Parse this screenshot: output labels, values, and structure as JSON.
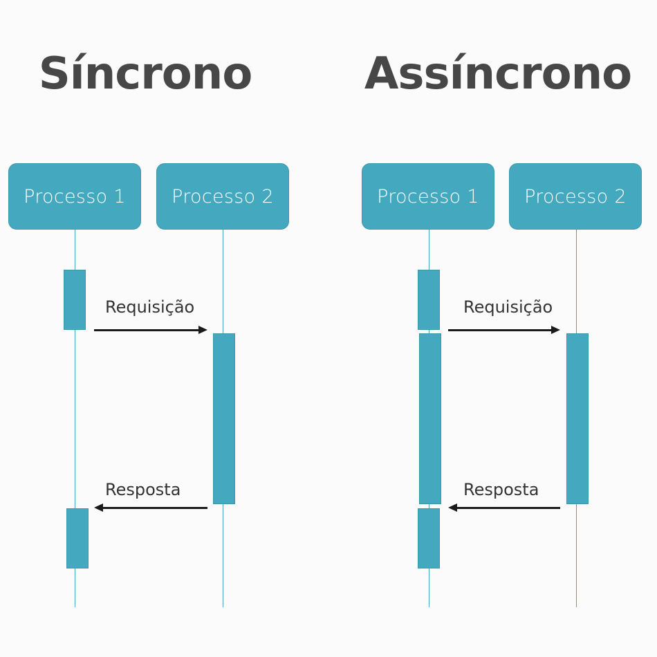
{
  "synchronous": {
    "title": "Síncrono",
    "process_1": "Processo 1",
    "process_2": "Processo 2",
    "request_label": "Requisição",
    "response_label": "Resposta"
  },
  "asynchronous": {
    "title": "Assíncrono",
    "process_1": "Processo 1",
    "process_2": "Processo 2",
    "request_label": "Requisição",
    "response_label": "Resposta"
  },
  "colors": {
    "process_box": "#44a8be",
    "title_text": "#474747",
    "arrow": "#1a1a1a",
    "background": "#fbfbfb"
  }
}
